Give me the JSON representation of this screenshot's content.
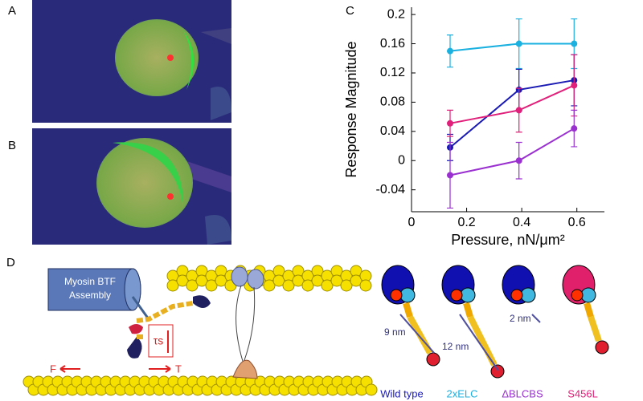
{
  "chart_data": {
    "type": "line",
    "panel_label": "C",
    "x_label": "Pressure, nN/μm²",
    "y_label": "Response Magnitude",
    "x": [
      0.14,
      0.39,
      0.59
    ],
    "series": [
      {
        "name": "2xELC",
        "color": "#1ab0e0",
        "values": [
          0.15,
          0.16,
          0.16
        ],
        "errors": [
          0.022,
          0.034,
          0.034
        ]
      },
      {
        "name": "Wild type",
        "color": "#1a1ab4",
        "values": [
          0.018,
          0.097,
          0.11
        ],
        "errors": [
          0.018,
          0.028,
          0.035
        ]
      },
      {
        "name": "S456L",
        "color": "#e0207a",
        "values": [
          0.051,
          0.069,
          0.103
        ],
        "errors": [
          0.018,
          0.03,
          0.042
        ]
      },
      {
        "name": "ΔBLCBS",
        "color": "#9a30d0",
        "values": [
          -0.02,
          0,
          0.044
        ],
        "errors": [
          0.045,
          0.025,
          0.025
        ]
      }
    ],
    "xlim": [
      0,
      0.7
    ],
    "xticks": [
      0,
      0.2,
      0.4,
      0.6
    ],
    "ylim": [
      -0.07,
      0.21
    ],
    "yticks": [
      0.2,
      0.16,
      0.12,
      0.08,
      0.04,
      0,
      -0.04
    ]
  },
  "panels": {
    "a": "A",
    "b": "B",
    "d": "D"
  },
  "diagram": {
    "assembly": [
      "Myosin BTF",
      "Assembly"
    ],
    "force": "F",
    "tension": "T",
    "tau": "τs",
    "lengths": [
      "9 nm",
      "12 nm",
      "2 nm"
    ]
  }
}
